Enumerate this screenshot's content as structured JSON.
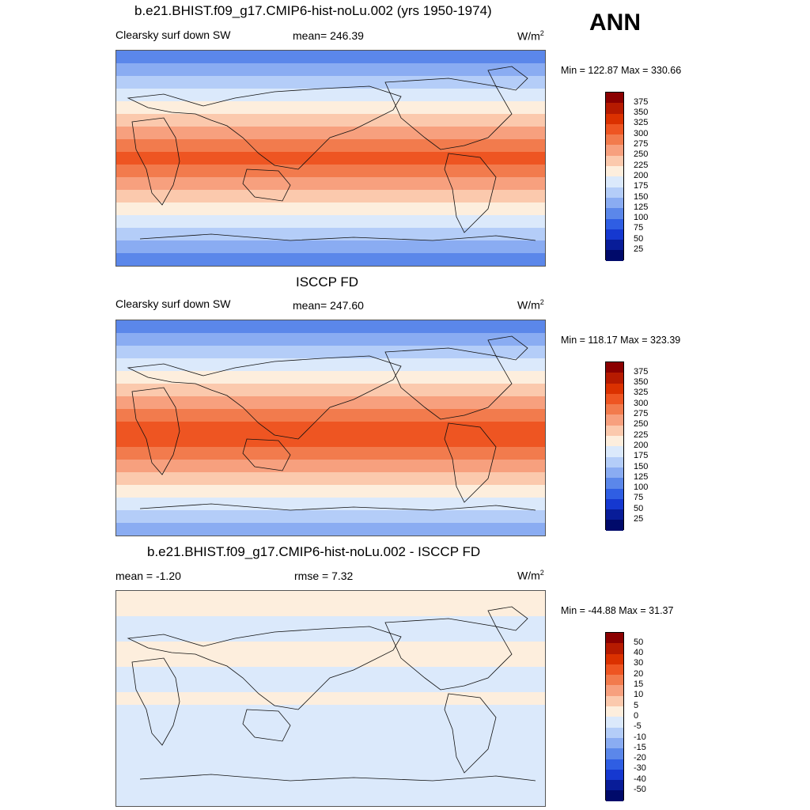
{
  "corner_label": "ANN",
  "chart_data": [
    {
      "type": "heatmap",
      "title": "b.e21.BHIST.f09_g17.CMIP6-hist-noLu.002 (yrs 1950-1974)",
      "left_label": "Clearsky surf down SW",
      "center_label": "mean= 246.39",
      "units_base": "W/m",
      "units_exp": "2",
      "minmax": "Min = 122.87 Max = 330.66",
      "min": 122.87,
      "max": 330.66,
      "levels": [
        "375",
        "350",
        "325",
        "300",
        "275",
        "250",
        "225",
        "200",
        "175",
        "150",
        "125",
        "100",
        "75",
        "50",
        "25"
      ],
      "colors": [
        "#8b0000",
        "#b61a00",
        "#db3100",
        "#ee5522",
        "#f27b4d",
        "#f7a07e",
        "#fbc9ad",
        "#fdeedd",
        "#dbe9fb",
        "#b4cdf8",
        "#8aacf2",
        "#5b87ea",
        "#2f5ee3",
        "#1538d0",
        "#081c98",
        "#000a6a"
      ],
      "band_levels": [
        100,
        125,
        150,
        175,
        200,
        225,
        250,
        275,
        300,
        275,
        250,
        225,
        200,
        175,
        150,
        125,
        100
      ],
      "grid": false
    },
    {
      "type": "heatmap",
      "title": "ISCCP FD",
      "left_label": "Clearsky surf down SW",
      "center_label": "mean= 247.60",
      "units_base": "W/m",
      "units_exp": "2",
      "minmax": "Min = 118.17 Max = 323.39",
      "min": 118.17,
      "max": 323.39,
      "levels": [
        "375",
        "350",
        "325",
        "300",
        "275",
        "250",
        "225",
        "200",
        "175",
        "150",
        "125",
        "100",
        "75",
        "50",
        "25"
      ],
      "colors": [
        "#8b0000",
        "#b61a00",
        "#db3100",
        "#ee5522",
        "#f27b4d",
        "#f7a07e",
        "#fbc9ad",
        "#fdeedd",
        "#dbe9fb",
        "#b4cdf8",
        "#8aacf2",
        "#5b87ea",
        "#2f5ee3",
        "#1538d0",
        "#081c98",
        "#000a6a"
      ],
      "band_levels": [
        100,
        125,
        150,
        175,
        200,
        225,
        250,
        275,
        300,
        300,
        275,
        250,
        225,
        200,
        175,
        150,
        125
      ],
      "grid": false
    },
    {
      "type": "heatmap",
      "title": "b.e21.BHIST.f09_g17.CMIP6-hist-noLu.002 - ISCCP FD",
      "left_label": "mean =  -1.20",
      "center_label": "rmse =   7.32",
      "units_base": "W/m",
      "units_exp": "2",
      "minmax": "Min = -44.88 Max =  31.37",
      "min": -44.88,
      "max": 31.37,
      "levels": [
        "50",
        "40",
        "30",
        "20",
        "15",
        "10",
        "5",
        "0",
        "-5",
        "-10",
        "-15",
        "-20",
        "-30",
        "-40",
        "-50"
      ],
      "colors": [
        "#8b0000",
        "#b61a00",
        "#db3100",
        "#ee5522",
        "#f27b4d",
        "#f7a07e",
        "#fbc9ad",
        "#fdeedd",
        "#dbe9fb",
        "#b4cdf8",
        "#8aacf2",
        "#5b87ea",
        "#2f5ee3",
        "#1538d0",
        "#081c98",
        "#000a6a"
      ],
      "band_levels": [
        0,
        0,
        -5,
        -5,
        0,
        0,
        -5,
        -5,
        0,
        -5,
        -5,
        -5,
        -5,
        -5,
        -5,
        -5,
        -5
      ],
      "grid": false
    }
  ]
}
